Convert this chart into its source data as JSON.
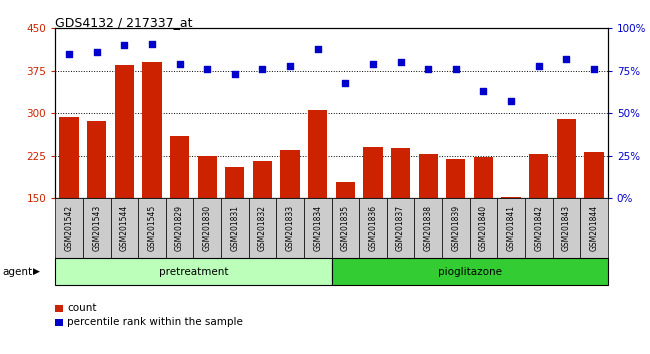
{
  "title": "GDS4132 / 217337_at",
  "categories": [
    "GSM201542",
    "GSM201543",
    "GSM201544",
    "GSM201545",
    "GSM201829",
    "GSM201830",
    "GSM201831",
    "GSM201832",
    "GSM201833",
    "GSM201834",
    "GSM201835",
    "GSM201836",
    "GSM201837",
    "GSM201838",
    "GSM201839",
    "GSM201840",
    "GSM201841",
    "GSM201842",
    "GSM201843",
    "GSM201844"
  ],
  "count_values": [
    293,
    287,
    385,
    390,
    260,
    225,
    205,
    215,
    235,
    305,
    178,
    240,
    238,
    228,
    220,
    223,
    153,
    228,
    290,
    232
  ],
  "percentile_values": [
    85,
    86,
    90,
    91,
    79,
    76,
    73,
    76,
    78,
    88,
    68,
    79,
    80,
    76,
    76,
    63,
    57,
    78,
    82,
    76
  ],
  "pretreatment_count": 10,
  "pioglitazone_count": 10,
  "ylim_left": [
    150,
    450
  ],
  "ylim_right": [
    0,
    100
  ],
  "yticks_left": [
    150,
    225,
    300,
    375,
    450
  ],
  "yticks_right": [
    0,
    25,
    50,
    75,
    100
  ],
  "bar_color": "#cc2200",
  "dot_color": "#0000cc",
  "pretreatment_color": "#bbffbb",
  "pioglitazone_color": "#33cc33",
  "grid_color": "black",
  "plot_bg_color": "#ffffff",
  "label_bg_color": "#cccccc",
  "legend_count_label": "count",
  "legend_percentile_label": "percentile rank within the sample",
  "agent_label": "agent",
  "pretreatment_label": "pretreatment",
  "pioglitazone_label": "pioglitazone"
}
